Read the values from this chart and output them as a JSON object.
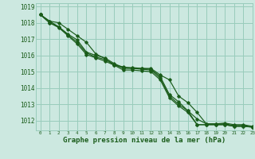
{
  "title": "Graphe pression niveau de la mer (hPa)",
  "bg_color": "#cce8e0",
  "grid_color": "#99ccbb",
  "line_color": "#1a5c1a",
  "xlim": [
    -0.5,
    23
  ],
  "ylim": [
    1011.4,
    1019.2
  ],
  "yticks": [
    1012,
    1013,
    1014,
    1015,
    1016,
    1017,
    1018,
    1019
  ],
  "xticks": [
    0,
    1,
    2,
    3,
    4,
    5,
    6,
    7,
    8,
    9,
    10,
    11,
    12,
    13,
    14,
    15,
    16,
    17,
    18,
    19,
    20,
    21,
    22,
    23
  ],
  "series": [
    [
      1018.5,
      1018.1,
      1018.0,
      1017.6,
      1017.2,
      1016.8,
      1016.1,
      1015.8,
      1015.4,
      1015.3,
      1015.2,
      1015.2,
      1015.2,
      1014.8,
      1014.5,
      1013.5,
      1013.1,
      1012.5,
      1011.8,
      1011.8,
      1011.85,
      1011.75,
      1011.75,
      1011.65
    ],
    [
      1018.5,
      1018.1,
      1017.75,
      1017.3,
      1016.95,
      1016.2,
      1016.0,
      1015.85,
      1015.5,
      1015.25,
      1015.25,
      1015.2,
      1015.15,
      1014.7,
      1013.6,
      1013.15,
      1012.6,
      1012.1,
      1011.8,
      1011.8,
      1011.8,
      1011.7,
      1011.7,
      1011.6
    ],
    [
      1018.5,
      1018.0,
      1017.75,
      1017.25,
      1016.8,
      1016.15,
      1015.9,
      1015.75,
      1015.45,
      1015.2,
      1015.2,
      1015.15,
      1015.1,
      1014.6,
      1013.5,
      1013.0,
      1012.6,
      1011.75,
      1011.75,
      1011.75,
      1011.75,
      1011.65,
      1011.65,
      1011.6
    ],
    [
      1018.5,
      1018.0,
      1017.7,
      1017.2,
      1016.7,
      1016.05,
      1015.85,
      1015.65,
      1015.4,
      1015.1,
      1015.1,
      1015.05,
      1015.0,
      1014.5,
      1013.4,
      1012.9,
      1012.5,
      1011.75,
      1011.75,
      1011.75,
      1011.75,
      1011.65,
      1011.65,
      1011.6
    ]
  ]
}
